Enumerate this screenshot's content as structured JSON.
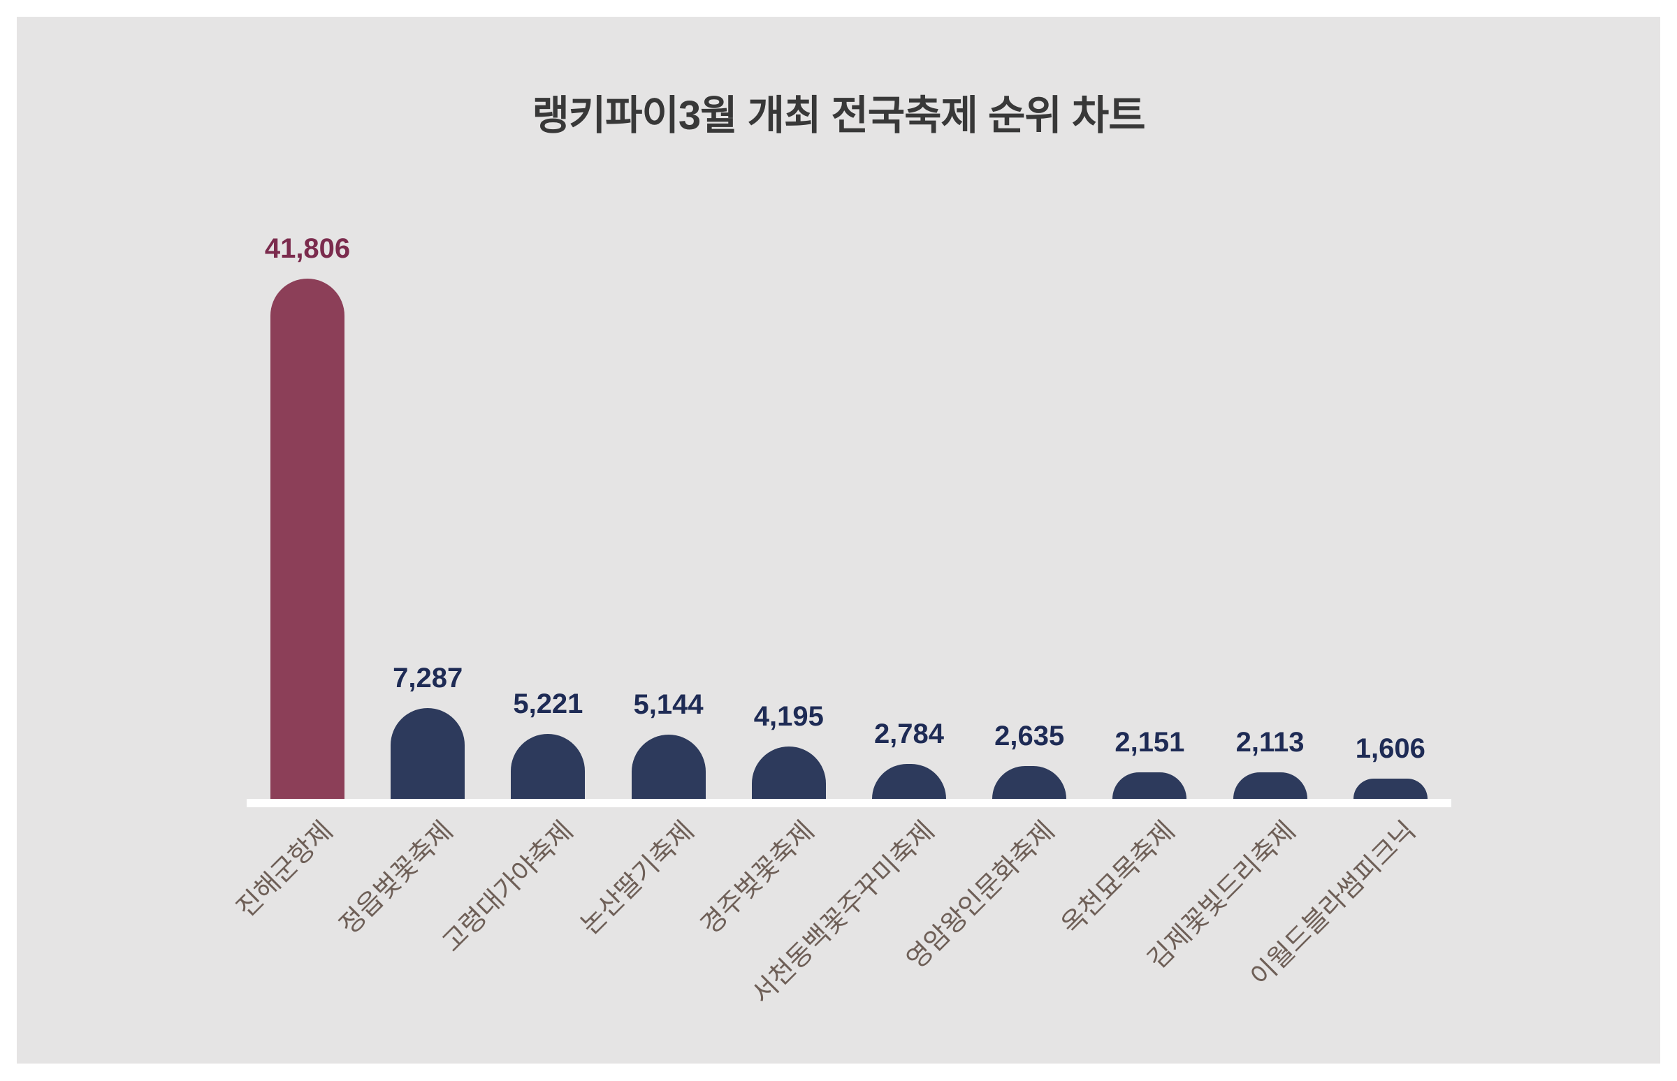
{
  "title": "랭키파이3월 개최 전국축제 순위 차트",
  "colors": {
    "page_background": "#ffffff",
    "canvas_background": "#e5e4e4",
    "title_color": "#383838",
    "axis_line": "#ffffff",
    "highlight_bar": "#8c3f58",
    "highlight_value_label": "#7b2b4d",
    "bar": "#2d3a5c",
    "value_label": "#1e2b55",
    "category_label": "#6e5f57"
  },
  "chart_data": {
    "type": "bar",
    "title": "랭키파이3월 개최 전국축제 순위 차트",
    "categories": [
      "진해군항제",
      "정읍벚꽃축제",
      "고령대가야축제",
      "논산딸기축제",
      "경주벚꽃축제",
      "서천동백꽃주꾸미축제",
      "영암왕인문화축제",
      "옥천묘목축제",
      "김제꽃빛드리축제",
      "이월드블라썸피크닉"
    ],
    "values": [
      41806,
      7287,
      5221,
      5144,
      4195,
      2784,
      2635,
      2151,
      2113,
      1606
    ],
    "value_labels": [
      "41,806",
      "7,287",
      "5,221",
      "5,144",
      "4,195",
      "2,784",
      "2,635",
      "2,151",
      "2,113",
      "1,606"
    ],
    "highlight_index": 0,
    "xlabel": "",
    "ylabel": "",
    "ylim": [
      0,
      41806
    ],
    "grid": false,
    "legend_position": "none",
    "tick_rotation_deg": 45
  }
}
